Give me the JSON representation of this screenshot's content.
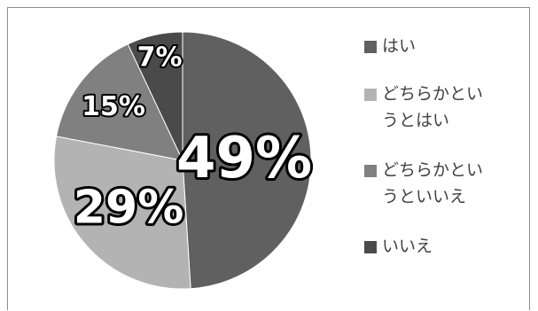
{
  "chart_data": {
    "type": "pie",
    "title": "",
    "categories": [
      "はい",
      "どちらかというとはい",
      "どちらかというといいえ",
      "いいえ"
    ],
    "values": [
      49,
      29,
      15,
      7
    ],
    "data_labels": [
      "49%",
      "29%",
      "15%",
      "7%"
    ],
    "colors": [
      "#606060",
      "#b3b3b3",
      "#808080",
      "#4a4a4a"
    ],
    "legend_position": "right",
    "start_angle": "12 o'clock",
    "direction": "clockwise"
  },
  "legend": {
    "items": [
      {
        "line1": "はい",
        "line2": ""
      },
      {
        "line1": "どちらかとい",
        "line2": "うとはい"
      },
      {
        "line1": "どちらかとい",
        "line2": "うといいえ"
      },
      {
        "line1": "いいえ",
        "line2": ""
      }
    ]
  }
}
